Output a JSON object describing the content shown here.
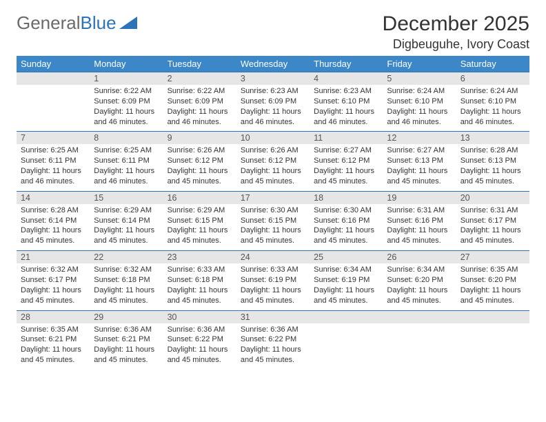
{
  "logo": {
    "text1": "General",
    "text2": "Blue"
  },
  "header": {
    "month": "December 2025",
    "location": "Digbeuguhe, Ivory Coast"
  },
  "style": {
    "accent": "#3b87c8",
    "rule": "#2c73b8",
    "daynum_bg": "#e6e6e6",
    "text": "#333333",
    "fontsize_header_th": 13,
    "fontsize_daynum": 12.5,
    "fontsize_detail": 11
  },
  "weekdays": [
    "Sunday",
    "Monday",
    "Tuesday",
    "Wednesday",
    "Thursday",
    "Friday",
    "Saturday"
  ],
  "weeks": [
    {
      "days": [
        {
          "n": "",
          "sunrise": "",
          "sunset": "",
          "daylight": ""
        },
        {
          "n": "1",
          "sunrise": "Sunrise: 6:22 AM",
          "sunset": "Sunset: 6:09 PM",
          "daylight": "Daylight: 11 hours and 46 minutes."
        },
        {
          "n": "2",
          "sunrise": "Sunrise: 6:22 AM",
          "sunset": "Sunset: 6:09 PM",
          "daylight": "Daylight: 11 hours and 46 minutes."
        },
        {
          "n": "3",
          "sunrise": "Sunrise: 6:23 AM",
          "sunset": "Sunset: 6:09 PM",
          "daylight": "Daylight: 11 hours and 46 minutes."
        },
        {
          "n": "4",
          "sunrise": "Sunrise: 6:23 AM",
          "sunset": "Sunset: 6:10 PM",
          "daylight": "Daylight: 11 hours and 46 minutes."
        },
        {
          "n": "5",
          "sunrise": "Sunrise: 6:24 AM",
          "sunset": "Sunset: 6:10 PM",
          "daylight": "Daylight: 11 hours and 46 minutes."
        },
        {
          "n": "6",
          "sunrise": "Sunrise: 6:24 AM",
          "sunset": "Sunset: 6:10 PM",
          "daylight": "Daylight: 11 hours and 46 minutes."
        }
      ]
    },
    {
      "days": [
        {
          "n": "7",
          "sunrise": "Sunrise: 6:25 AM",
          "sunset": "Sunset: 6:11 PM",
          "daylight": "Daylight: 11 hours and 46 minutes."
        },
        {
          "n": "8",
          "sunrise": "Sunrise: 6:25 AM",
          "sunset": "Sunset: 6:11 PM",
          "daylight": "Daylight: 11 hours and 46 minutes."
        },
        {
          "n": "9",
          "sunrise": "Sunrise: 6:26 AM",
          "sunset": "Sunset: 6:12 PM",
          "daylight": "Daylight: 11 hours and 45 minutes."
        },
        {
          "n": "10",
          "sunrise": "Sunrise: 6:26 AM",
          "sunset": "Sunset: 6:12 PM",
          "daylight": "Daylight: 11 hours and 45 minutes."
        },
        {
          "n": "11",
          "sunrise": "Sunrise: 6:27 AM",
          "sunset": "Sunset: 6:12 PM",
          "daylight": "Daylight: 11 hours and 45 minutes."
        },
        {
          "n": "12",
          "sunrise": "Sunrise: 6:27 AM",
          "sunset": "Sunset: 6:13 PM",
          "daylight": "Daylight: 11 hours and 45 minutes."
        },
        {
          "n": "13",
          "sunrise": "Sunrise: 6:28 AM",
          "sunset": "Sunset: 6:13 PM",
          "daylight": "Daylight: 11 hours and 45 minutes."
        }
      ]
    },
    {
      "days": [
        {
          "n": "14",
          "sunrise": "Sunrise: 6:28 AM",
          "sunset": "Sunset: 6:14 PM",
          "daylight": "Daylight: 11 hours and 45 minutes."
        },
        {
          "n": "15",
          "sunrise": "Sunrise: 6:29 AM",
          "sunset": "Sunset: 6:14 PM",
          "daylight": "Daylight: 11 hours and 45 minutes."
        },
        {
          "n": "16",
          "sunrise": "Sunrise: 6:29 AM",
          "sunset": "Sunset: 6:15 PM",
          "daylight": "Daylight: 11 hours and 45 minutes."
        },
        {
          "n": "17",
          "sunrise": "Sunrise: 6:30 AM",
          "sunset": "Sunset: 6:15 PM",
          "daylight": "Daylight: 11 hours and 45 minutes."
        },
        {
          "n": "18",
          "sunrise": "Sunrise: 6:30 AM",
          "sunset": "Sunset: 6:16 PM",
          "daylight": "Daylight: 11 hours and 45 minutes."
        },
        {
          "n": "19",
          "sunrise": "Sunrise: 6:31 AM",
          "sunset": "Sunset: 6:16 PM",
          "daylight": "Daylight: 11 hours and 45 minutes."
        },
        {
          "n": "20",
          "sunrise": "Sunrise: 6:31 AM",
          "sunset": "Sunset: 6:17 PM",
          "daylight": "Daylight: 11 hours and 45 minutes."
        }
      ]
    },
    {
      "days": [
        {
          "n": "21",
          "sunrise": "Sunrise: 6:32 AM",
          "sunset": "Sunset: 6:17 PM",
          "daylight": "Daylight: 11 hours and 45 minutes."
        },
        {
          "n": "22",
          "sunrise": "Sunrise: 6:32 AM",
          "sunset": "Sunset: 6:18 PM",
          "daylight": "Daylight: 11 hours and 45 minutes."
        },
        {
          "n": "23",
          "sunrise": "Sunrise: 6:33 AM",
          "sunset": "Sunset: 6:18 PM",
          "daylight": "Daylight: 11 hours and 45 minutes."
        },
        {
          "n": "24",
          "sunrise": "Sunrise: 6:33 AM",
          "sunset": "Sunset: 6:19 PM",
          "daylight": "Daylight: 11 hours and 45 minutes."
        },
        {
          "n": "25",
          "sunrise": "Sunrise: 6:34 AM",
          "sunset": "Sunset: 6:19 PM",
          "daylight": "Daylight: 11 hours and 45 minutes."
        },
        {
          "n": "26",
          "sunrise": "Sunrise: 6:34 AM",
          "sunset": "Sunset: 6:20 PM",
          "daylight": "Daylight: 11 hours and 45 minutes."
        },
        {
          "n": "27",
          "sunrise": "Sunrise: 6:35 AM",
          "sunset": "Sunset: 6:20 PM",
          "daylight": "Daylight: 11 hours and 45 minutes."
        }
      ]
    },
    {
      "days": [
        {
          "n": "28",
          "sunrise": "Sunrise: 6:35 AM",
          "sunset": "Sunset: 6:21 PM",
          "daylight": "Daylight: 11 hours and 45 minutes."
        },
        {
          "n": "29",
          "sunrise": "Sunrise: 6:36 AM",
          "sunset": "Sunset: 6:21 PM",
          "daylight": "Daylight: 11 hours and 45 minutes."
        },
        {
          "n": "30",
          "sunrise": "Sunrise: 6:36 AM",
          "sunset": "Sunset: 6:22 PM",
          "daylight": "Daylight: 11 hours and 45 minutes."
        },
        {
          "n": "31",
          "sunrise": "Sunrise: 6:36 AM",
          "sunset": "Sunset: 6:22 PM",
          "daylight": "Daylight: 11 hours and 45 minutes."
        },
        {
          "n": "",
          "sunrise": "",
          "sunset": "",
          "daylight": ""
        },
        {
          "n": "",
          "sunrise": "",
          "sunset": "",
          "daylight": ""
        },
        {
          "n": "",
          "sunrise": "",
          "sunset": "",
          "daylight": ""
        }
      ]
    }
  ]
}
